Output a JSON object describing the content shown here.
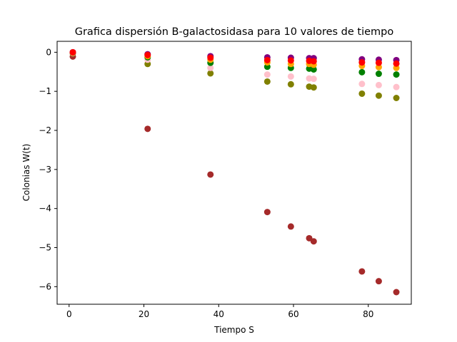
{
  "chart_data": {
    "type": "scatter",
    "title": "Grafica dispersión B-galactosidasa para 10 valores de tiempo",
    "xlabel": "Tiempo S",
    "ylabel": "Colonias W(t)",
    "xlim": [
      -3.2,
      91.5
    ],
    "ylim": [
      -6.45,
      0.28
    ],
    "xticks": [
      {
        "value": 0,
        "label": "0"
      },
      {
        "value": 20,
        "label": "20"
      },
      {
        "value": 40,
        "label": "40"
      },
      {
        "value": 60,
        "label": "60"
      },
      {
        "value": 80,
        "label": "80"
      }
    ],
    "yticks": [
      {
        "value": 0,
        "label": "0"
      },
      {
        "value": -1,
        "label": "−1"
      },
      {
        "value": -2,
        "label": "−2"
      },
      {
        "value": -3,
        "label": "−3"
      },
      {
        "value": -4,
        "label": "−4"
      },
      {
        "value": -5,
        "label": "−5"
      },
      {
        "value": -6,
        "label": "−6"
      }
    ],
    "grid": false,
    "legend": false,
    "x": [
      1,
      21,
      37.8,
      53,
      59.3,
      64.2,
      65.4,
      78.3,
      82.8,
      87.5
    ],
    "series": [
      {
        "color": "#a52a2a",
        "values": [
          -0.11,
          -1.96,
          -3.13,
          -4.09,
          -4.46,
          -4.76,
          -4.84,
          -5.61,
          -5.86,
          -6.14
        ]
      },
      {
        "color": "#808000",
        "values": [
          -0.03,
          -0.3,
          -0.54,
          -0.75,
          -0.82,
          -0.88,
          -0.9,
          -1.06,
          -1.11,
          -1.17
        ]
      },
      {
        "color": "#ffc0cb",
        "values": [
          -0.02,
          -0.19,
          -0.4,
          -0.57,
          -0.62,
          -0.67,
          -0.68,
          -0.81,
          -0.84,
          -0.89
        ]
      },
      {
        "color": "#008000",
        "values": [
          -0.01,
          -0.13,
          -0.27,
          -0.37,
          -0.4,
          -0.42,
          -0.44,
          -0.51,
          -0.55,
          -0.57
        ]
      },
      {
        "color": "#ffa500",
        "values": [
          -0.01,
          -0.1,
          -0.19,
          -0.26,
          -0.3,
          -0.3,
          -0.32,
          -0.35,
          -0.38,
          -0.4
        ]
      },
      {
        "color": "#800080",
        "values": [
          0.0,
          -0.05,
          -0.1,
          -0.13,
          -0.14,
          -0.15,
          -0.15,
          -0.18,
          -0.19,
          -0.2
        ]
      },
      {
        "color": "#ff0000",
        "values": [
          0.0,
          -0.07,
          -0.14,
          -0.2,
          -0.21,
          -0.22,
          -0.23,
          -0.26,
          -0.27,
          -0.29
        ]
      }
    ]
  }
}
